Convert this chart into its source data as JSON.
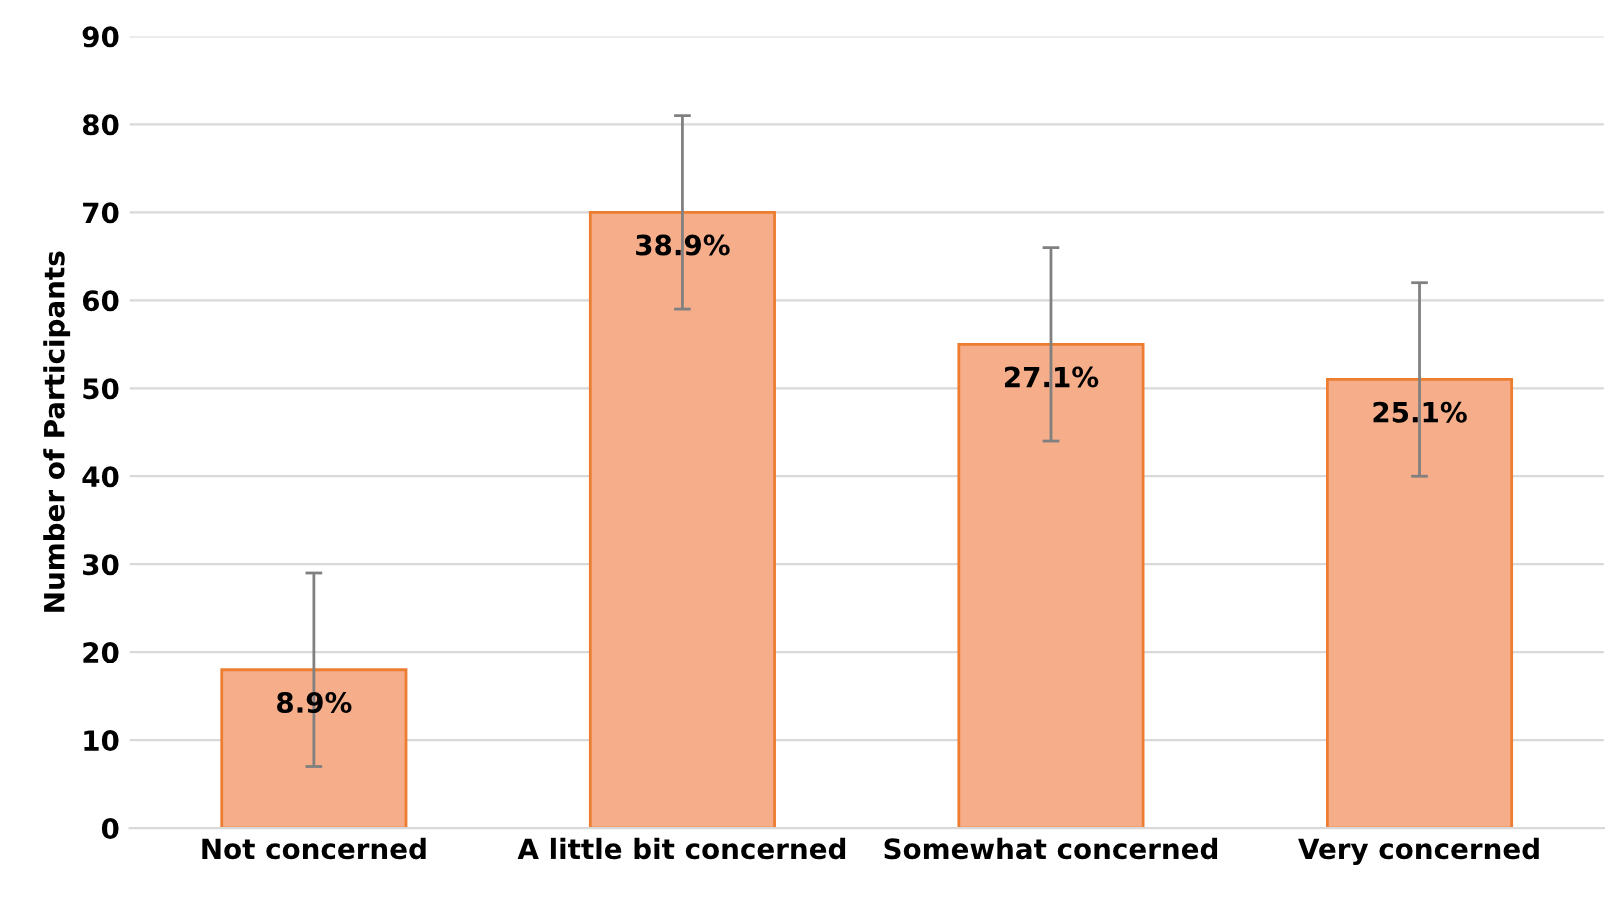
{
  "chart_data": {
    "type": "bar",
    "ylabel": "Number of Participants",
    "categories": [
      "Not concerned",
      "A little bit concerned",
      "Somewhat concerned",
      "Very concerned"
    ],
    "values": [
      18,
      70,
      55,
      51
    ],
    "errors": [
      11,
      11,
      11,
      11
    ],
    "annotations": [
      {
        "text": "8.9%",
        "x": "Not concerned",
        "y": 14
      },
      {
        "text": "38.9%",
        "x": "A little bit concerned",
        "y": 66
      },
      {
        "text": "27.1%",
        "x": "Somewhat concerned",
        "y": 51
      },
      {
        "text": "25.1%",
        "x": "Very concerned",
        "y": 47
      }
    ],
    "color": "#f5ad8a",
    "ylim": [
      0,
      90
    ],
    "yticks": [
      0,
      10,
      20,
      30,
      40,
      50,
      60,
      70,
      80,
      90
    ],
    "grid": "y"
  }
}
